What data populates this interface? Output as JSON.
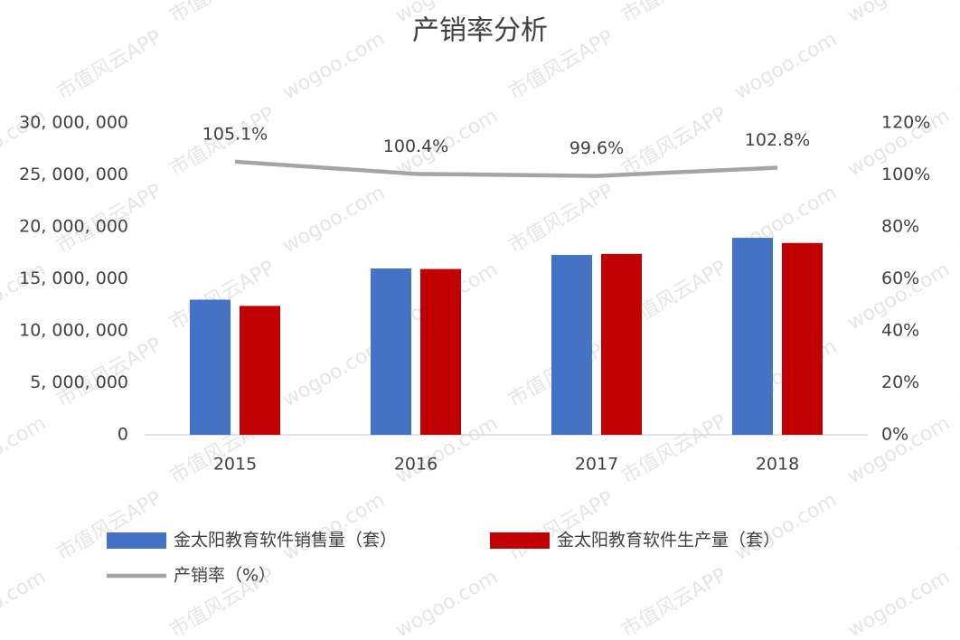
{
  "chart_data": {
    "type": "bar_line",
    "title": "产销率分析",
    "categories": [
      "2015",
      "2016",
      "2017",
      "2018"
    ],
    "series": [
      {
        "name": "金太阳教育软件销售量（套）",
        "color": "#4472c4",
        "type": "bar",
        "values": [
          13000000,
          16000000,
          17300000,
          18950000
        ]
      },
      {
        "name": "金太阳教育软件生产量（套）",
        "color": "#c00000",
        "type": "bar",
        "values": [
          12400000,
          15950000,
          17400000,
          18450000
        ]
      },
      {
        "name": "产销率（%）",
        "color": "#a5a5a5",
        "type": "line",
        "axis": "y2",
        "values": [
          105.1,
          100.4,
          99.6,
          102.8
        ],
        "value_labels": [
          "105.1%",
          "100.4%",
          "99.6%",
          "102.8%"
        ]
      }
    ],
    "ylim": [
      0,
      30000000
    ],
    "yticks": [
      0,
      {
        "value": 5000000,
        "label": "5, 000, 000"
      },
      {
        "value": 10000000,
        "label": "10, 000, 000"
      },
      {
        "value": 15000000,
        "label": "15, 000, 000"
      },
      {
        "value": 20000000,
        "label": "20, 000, 000"
      },
      {
        "value": 25000000,
        "label": "25, 000, 000"
      },
      {
        "value": 30000000,
        "label": "30, 000, 000"
      }
    ],
    "y2lim": [
      0,
      120
    ],
    "y2ticks": [
      {
        "value": 0,
        "label": "0%"
      },
      {
        "value": 20,
        "label": "20%"
      },
      {
        "value": 40,
        "label": "40%"
      },
      {
        "value": 60,
        "label": "60%"
      },
      {
        "value": 80,
        "label": "80%"
      },
      {
        "value": 100,
        "label": "100%"
      },
      {
        "value": 120,
        "label": "120%"
      }
    ],
    "watermarks": [
      "wogoo.com",
      "市值风云APP"
    ]
  }
}
